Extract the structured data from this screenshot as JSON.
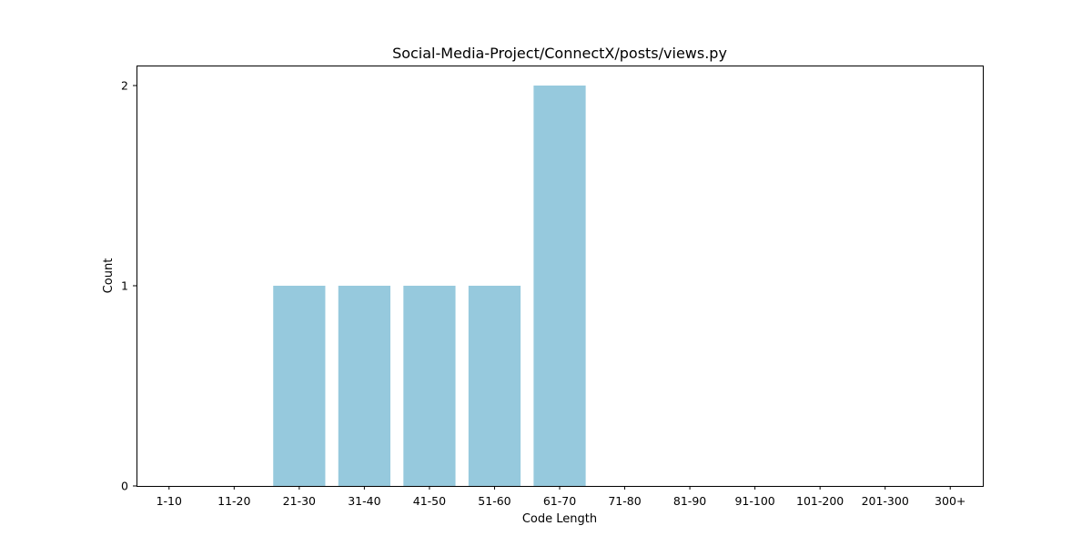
{
  "chart_data": {
    "type": "bar",
    "title": "Social-Media-Project/ConnectX/posts/views.py",
    "xlabel": "Code Length",
    "ylabel": "Count",
    "categories": [
      "1-10",
      "11-20",
      "21-30",
      "31-40",
      "41-50",
      "51-60",
      "61-70",
      "71-80",
      "81-90",
      "91-100",
      "101-200",
      "201-300",
      "300+"
    ],
    "values": [
      0,
      0,
      1,
      1,
      1,
      1,
      2,
      0,
      0,
      0,
      0,
      0,
      0
    ],
    "ylim": [
      0,
      2.1
    ],
    "yticks": [
      0,
      1,
      2
    ],
    "bar_color": "#96c9dd",
    "grid": false,
    "legend": "none"
  }
}
